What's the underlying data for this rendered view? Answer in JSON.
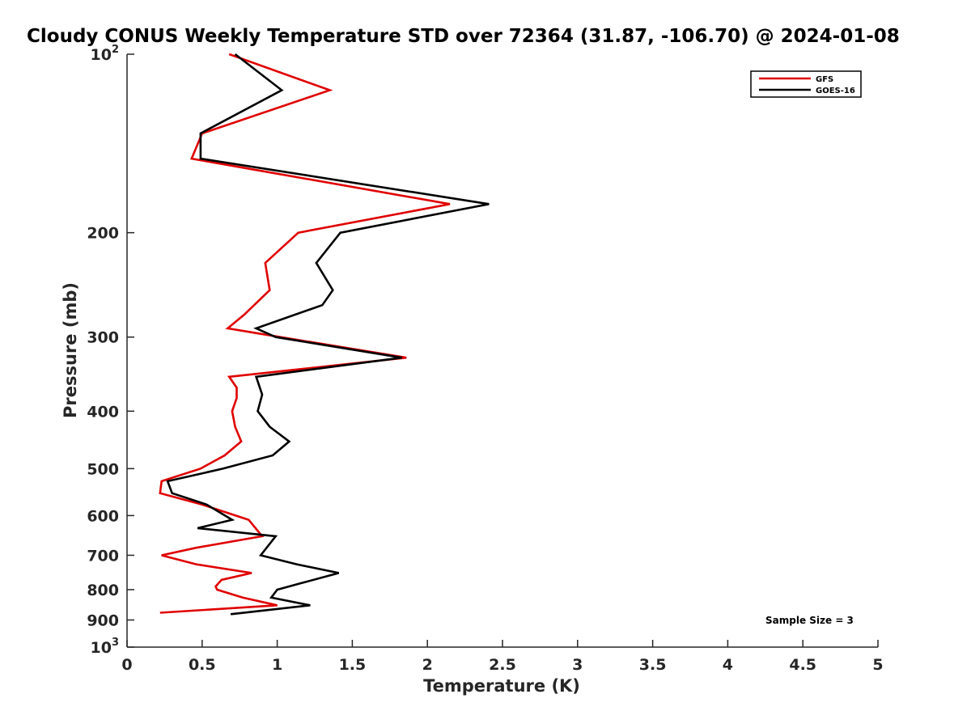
{
  "chart_data": {
    "type": "line",
    "title": "Cloudy CONUS Weekly Temperature STD over 72364 (31.87, -106.70) @ 2024-01-08",
    "xlabel": "Temperature (K)",
    "ylabel": "Pressure (mb)",
    "xlim": [
      0,
      5
    ],
    "ylim": [
      100,
      1000
    ],
    "y_scale": "log",
    "y_reversed": true,
    "x_ticks": [
      "0",
      "0.5",
      "1",
      "1.5",
      "2",
      "2.5",
      "3",
      "3.5",
      "4",
      "4.5",
      "5"
    ],
    "y_ticks": [
      {
        "value": 100,
        "base": "10",
        "exp": "2"
      },
      {
        "value": 200,
        "label": "200"
      },
      {
        "value": 300,
        "label": "300"
      },
      {
        "value": 400,
        "label": "400"
      },
      {
        "value": 500,
        "label": "500"
      },
      {
        "value": 600,
        "label": "600"
      },
      {
        "value": 700,
        "label": "700"
      },
      {
        "value": 800,
        "label": "800"
      },
      {
        "value": 900,
        "label": "900"
      },
      {
        "value": 1000,
        "base": "10",
        "exp": "3"
      }
    ],
    "legend_position": "top-right",
    "annotation": "Sample Size = 3",
    "series": [
      {
        "name": "GFS",
        "color": "#e00000",
        "points": [
          [
            0.68,
            100
          ],
          [
            1.35,
            115
          ],
          [
            0.5,
            136
          ],
          [
            0.43,
            150
          ],
          [
            2.15,
            179
          ],
          [
            1.14,
            200
          ],
          [
            0.92,
            225
          ],
          [
            0.95,
            250
          ],
          [
            0.78,
            275
          ],
          [
            0.67,
            290
          ],
          [
            1.02,
            300
          ],
          [
            1.86,
            325
          ],
          [
            0.68,
            350
          ],
          [
            0.73,
            365
          ],
          [
            0.73,
            380
          ],
          [
            0.7,
            400
          ],
          [
            0.72,
            425
          ],
          [
            0.76,
            450
          ],
          [
            0.65,
            475
          ],
          [
            0.49,
            500
          ],
          [
            0.23,
            525
          ],
          [
            0.22,
            550
          ],
          [
            0.5,
            575
          ],
          [
            0.81,
            610
          ],
          [
            0.9,
            650
          ],
          [
            0.46,
            680
          ],
          [
            0.23,
            700
          ],
          [
            0.46,
            725
          ],
          [
            0.83,
            750
          ],
          [
            0.63,
            770
          ],
          [
            0.59,
            790
          ],
          [
            0.6,
            800
          ],
          [
            0.77,
            825
          ],
          [
            1.0,
            850
          ],
          [
            0.22,
            875
          ]
        ]
      },
      {
        "name": "GOES-16",
        "color": "#000000",
        "points": [
          [
            0.72,
            100
          ],
          [
            1.03,
            115
          ],
          [
            0.49,
            136
          ],
          [
            0.49,
            150
          ],
          [
            2.41,
            179
          ],
          [
            1.42,
            200
          ],
          [
            1.26,
            225
          ],
          [
            1.37,
            250
          ],
          [
            1.3,
            265
          ],
          [
            0.86,
            290
          ],
          [
            0.99,
            300
          ],
          [
            1.83,
            325
          ],
          [
            0.86,
            350
          ],
          [
            0.9,
            375
          ],
          [
            0.87,
            400
          ],
          [
            0.95,
            425
          ],
          [
            1.08,
            450
          ],
          [
            0.97,
            475
          ],
          [
            0.64,
            500
          ],
          [
            0.27,
            525
          ],
          [
            0.3,
            550
          ],
          [
            0.53,
            575
          ],
          [
            0.7,
            610
          ],
          [
            0.47,
            630
          ],
          [
            0.99,
            650
          ],
          [
            0.89,
            700
          ],
          [
            1.13,
            725
          ],
          [
            1.41,
            750
          ],
          [
            1.16,
            780
          ],
          [
            1.0,
            800
          ],
          [
            0.96,
            825
          ],
          [
            1.22,
            850
          ],
          [
            0.69,
            880
          ]
        ]
      }
    ]
  }
}
